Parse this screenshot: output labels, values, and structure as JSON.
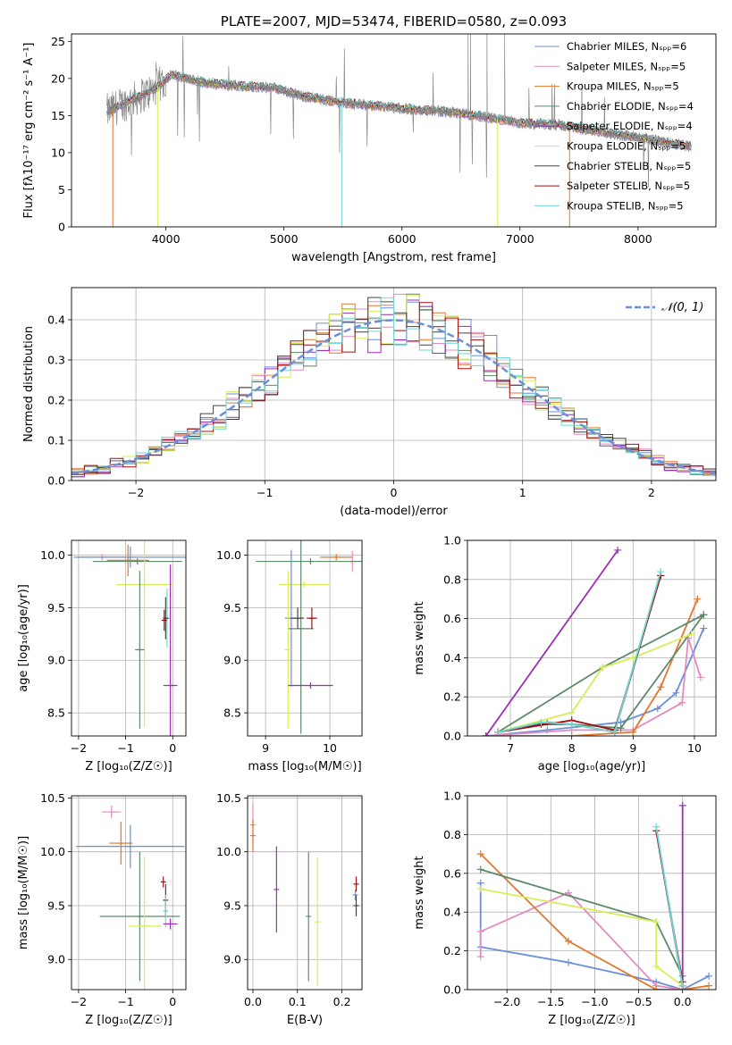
{
  "chart_data": [
    {
      "id": "spectrum",
      "type": "line",
      "title": "PLATE=2007, MJD=53474, FIBERID=0580, z=0.093",
      "xlabel": "wavelength [Angstrom, rest frame]",
      "ylabel": "Flux [fλ10⁻¹⁷ erg cm⁻² s⁻¹ A⁻¹]",
      "xlim": [
        3200,
        8660
      ],
      "ylim": [
        0,
        26
      ],
      "xticks": [
        4000,
        5000,
        6000,
        7000,
        8000
      ],
      "yticks": [
        0,
        5,
        10,
        15,
        20,
        25
      ],
      "legend_placement": "top-right",
      "legend": [
        {
          "name": "Chabrier MILES, Nₛₚₚ=6",
          "color": "#6b8fd8"
        },
        {
          "name": "Salpeter MILES, Nₛₚₚ=5",
          "color": "#e58ac0"
        },
        {
          "name": "Kroupa MILES, Nₛₚₚ=5",
          "color": "#e3762a"
        },
        {
          "name": "Chabrier ELODIE, Nₛₚₚ=4",
          "color": "#5e8a6a"
        },
        {
          "name": "Salpeter ELODIE, Nₛₚₚ=4",
          "color": "#9b2fb5"
        },
        {
          "name": "Kroupa ELODIE, Nₛₚₚ=5",
          "color": "#d6ee55"
        },
        {
          "name": "Chabrier STELIB, Nₛₚₚ=5",
          "color": "#444444"
        },
        {
          "name": "Salpeter STELIB, Nₛₚₚ=5",
          "color": "#a01010"
        },
        {
          "name": "Kroupa STELIB, Nₛₚₚ=5",
          "color": "#6fd6d6"
        }
      ],
      "continuum": {
        "x": [
          3500,
          3700,
          3900,
          4050,
          4300,
          4600,
          4900,
          5200,
          5500,
          5800,
          6100,
          6400,
          6700,
          7000,
          7300,
          7600,
          7900,
          8200,
          8450
        ],
        "y": [
          15.5,
          17.0,
          18.5,
          20.5,
          19.5,
          19.0,
          18.8,
          17.5,
          16.7,
          16.3,
          15.8,
          15.5,
          14.8,
          14.0,
          13.8,
          13.0,
          12.3,
          11.5,
          10.8
        ]
      },
      "data_color": "#888888"
    },
    {
      "id": "residuals",
      "type": "line",
      "xlabel": "(data-model)/error",
      "ylabel": "Normed distribution",
      "xlim": [
        -2.5,
        2.5
      ],
      "ylim": [
        0,
        0.48
      ],
      "xticks": [
        -2,
        -1,
        0,
        1,
        2
      ],
      "yticks": [
        0.0,
        0.1,
        0.2,
        0.3,
        0.4
      ],
      "grid": true,
      "legend_placement": "top-right",
      "legend": [
        {
          "name": "𝒩(0, 1)",
          "color": "#6b8fd8",
          "dash": true
        }
      ],
      "gaussian": {
        "mu": 0,
        "sigma": 1
      }
    },
    {
      "id": "age-vs-Z",
      "type": "scatter",
      "xlabel": "Z [log₁₀(Z/Z☉)]",
      "ylabel": "age  [log₁₀(age/yr)]",
      "xlim": [
        -2.15,
        0.28
      ],
      "ylim": [
        8.28,
        10.14
      ],
      "xticks": [
        -2,
        -1,
        0
      ],
      "yticks": [
        8.5,
        9.0,
        9.5,
        10.0
      ],
      "grid": true,
      "points": [
        {
          "x": -1.5,
          "y": 9.98,
          "ex": 0.5,
          "ey": 0.03,
          "color": "#e58ac0"
        },
        {
          "x": -0.9,
          "y": 9.98,
          "ex": 1.2,
          "ey": 0.1,
          "color": "#6b8fd8"
        },
        {
          "x": -0.95,
          "y": 9.95,
          "ex": 0.45,
          "ey": 0.15,
          "color": "#e3762a"
        },
        {
          "x": -0.75,
          "y": 9.94,
          "ex": 0.95,
          "ey": 0.03,
          "color": "#5e8a6a"
        },
        {
          "x": -0.6,
          "y": 9.72,
          "ex": 0.6,
          "ey": 1.35,
          "color": "#d6ee55"
        },
        {
          "x": -0.7,
          "y": 9.1,
          "ex": 0.1,
          "ey": 0.75,
          "color": "#5e8a6a"
        },
        {
          "x": -0.12,
          "y": 9.4,
          "ex": 0.08,
          "ey": 0.28,
          "color": "#6fd6d6"
        },
        {
          "x": -0.15,
          "y": 9.4,
          "ex": 0.05,
          "ey": 0.2,
          "color": "#444444"
        },
        {
          "x": -0.18,
          "y": 9.38,
          "ex": 0.04,
          "ey": 0.1,
          "color": "#a01010"
        },
        {
          "x": -0.05,
          "y": 8.76,
          "ex": 0.15,
          "ey": 1.15,
          "color": "#9b2fb5"
        }
      ]
    },
    {
      "id": "age-vs-mass",
      "type": "scatter",
      "xlabel": "mass [log₁₀(M/M☉)]",
      "xlim": [
        8.72,
        10.5
      ],
      "ylim": [
        8.28,
        10.14
      ],
      "xticks": [
        9,
        10
      ],
      "yticks": [
        8.5,
        9.0,
        9.5,
        10.0
      ],
      "grid": true,
      "points": [
        {
          "x": 10.1,
          "y": 9.98,
          "ex": 0.25,
          "ey": 0.03,
          "color": "#e3762a"
        },
        {
          "x": 10.35,
          "y": 9.94,
          "ex": 0.05,
          "ey": 0.1,
          "color": "#e58ac0"
        },
        {
          "x": 9.7,
          "y": 9.94,
          "ex": 0.85,
          "ey": 0.03,
          "color": "#5e8a6a"
        },
        {
          "x": 9.6,
          "y": 9.72,
          "ex": 0.4,
          "ey": 0.03,
          "color": "#d6ee55"
        },
        {
          "x": 9.55,
          "y": 9.3,
          "ex": 0.2,
          "ey": 1.0,
          "color": "#5e8a6a"
        },
        {
          "x": 9.4,
          "y": 9.4,
          "ex": 0.1,
          "ey": 0.65,
          "color": "#6b8fd8"
        },
        {
          "x": 9.5,
          "y": 9.4,
          "ex": 0.1,
          "ey": 0.1,
          "color": "#444444"
        },
        {
          "x": 9.72,
          "y": 9.4,
          "ex": 0.08,
          "ey": 0.1,
          "color": "#a01010"
        },
        {
          "x": 9.35,
          "y": 9.1,
          "ex": 0.05,
          "ey": 0.75,
          "color": "#d6ee55"
        },
        {
          "x": 9.7,
          "y": 8.76,
          "ex": 0.35,
          "ey": 0.03,
          "color": "#9b2fb5"
        }
      ]
    },
    {
      "id": "massweight-vs-age",
      "type": "line",
      "xlabel": "age  [log₁₀(age/yr)]",
      "ylabel": "mass weight",
      "xlim": [
        6.3,
        10.35
      ],
      "ylim": [
        0,
        1.0
      ],
      "xticks": [
        7,
        8,
        9,
        10
      ],
      "yticks": [
        0.0,
        0.2,
        0.4,
        0.6,
        0.8,
        1.0
      ],
      "grid": true,
      "series": [
        {
          "color": "#6b8fd8",
          "x": [
            6.6,
            7.6,
            8.8,
            9.4,
            9.7,
            10.15
          ],
          "y": [
            0.0,
            0.03,
            0.07,
            0.14,
            0.22,
            0.55
          ]
        },
        {
          "color": "#e58ac0",
          "x": [
            6.6,
            8.0,
            9.0,
            9.8,
            9.9,
            10.1
          ],
          "y": [
            0.0,
            0.03,
            0.03,
            0.17,
            0.5,
            0.3
          ]
        },
        {
          "color": "#e3762a",
          "x": [
            6.6,
            8.0,
            9.0,
            9.45,
            10.05
          ],
          "y": [
            0.0,
            0.0,
            0.02,
            0.25,
            0.7
          ]
        },
        {
          "color": "#5e8a6a",
          "x": [
            6.8,
            7.6,
            8.8,
            10.15
          ],
          "y": [
            0.02,
            0.07,
            0.04,
            0.62
          ]
        },
        {
          "color": "#5e8a6a",
          "x": [
            6.8,
            8.5,
            10.15
          ],
          "y": [
            0.02,
            0.35,
            0.62
          ]
        },
        {
          "color": "#9b2fb5",
          "x": [
            6.6,
            8.75
          ],
          "y": [
            0.0,
            0.95
          ]
        },
        {
          "color": "#d6ee55",
          "x": [
            6.8,
            8.0,
            8.5,
            9.0,
            9.95
          ],
          "y": [
            0.02,
            0.12,
            0.35,
            0.4,
            0.52
          ]
        },
        {
          "color": "#444444",
          "x": [
            6.8,
            7.5,
            8.0,
            8.7,
            9.45
          ],
          "y": [
            0.02,
            0.06,
            0.06,
            0.02,
            0.82
          ]
        },
        {
          "color": "#a01010",
          "x": [
            6.8,
            8.0,
            8.7,
            9.45
          ],
          "y": [
            0.02,
            0.08,
            0.03,
            0.82
          ]
        },
        {
          "color": "#6fd6d6",
          "x": [
            6.8,
            7.5,
            8.0,
            8.7,
            9.45
          ],
          "y": [
            0.02,
            0.07,
            0.06,
            0.02,
            0.84
          ]
        }
      ]
    },
    {
      "id": "mass-vs-Z",
      "type": "scatter",
      "xlabel": "Z [log₁₀(Z/Z☉)]",
      "ylabel": "mass [log₁₀(M/M☉)]",
      "xlim": [
        -2.15,
        0.28
      ],
      "ylim": [
        8.72,
        10.52
      ],
      "xticks": [
        -2,
        -1,
        0
      ],
      "yticks": [
        9.0,
        9.5,
        10.0,
        10.5
      ],
      "grid": true,
      "points": [
        {
          "x": -1.3,
          "y": 10.37,
          "ex": 0.2,
          "ey": 0.06,
          "color": "#e58ac0"
        },
        {
          "x": -1.1,
          "y": 10.08,
          "ex": 0.25,
          "ey": 0.2,
          "color": "#e3762a"
        },
        {
          "x": -0.9,
          "y": 10.05,
          "ex": 1.15,
          "ey": 0.2,
          "color": "#6b8fd8"
        },
        {
          "x": -0.7,
          "y": 9.4,
          "ex": 0.85,
          "ey": 0.6,
          "color": "#5e8a6a"
        },
        {
          "x": -0.6,
          "y": 9.31,
          "ex": 0.35,
          "ey": 0.65,
          "color": "#d6ee55"
        },
        {
          "x": -0.2,
          "y": 9.72,
          "ex": 0.05,
          "ey": 0.05,
          "color": "#a01010"
        },
        {
          "x": -0.15,
          "y": 9.55,
          "ex": 0.05,
          "ey": 0.15,
          "color": "#444444"
        },
        {
          "x": -0.15,
          "y": 9.45,
          "ex": 0.05,
          "ey": 0.15,
          "color": "#6fd6d6"
        },
        {
          "x": -0.05,
          "y": 9.33,
          "ex": 0.15,
          "ey": 0.05,
          "color": "#9b2fb5"
        }
      ]
    },
    {
      "id": "mass-vs-EBV",
      "type": "scatter",
      "xlabel": "E(B-V)",
      "xlim": [
        -0.012,
        0.245
      ],
      "ylim": [
        8.72,
        10.52
      ],
      "xticks": [
        0.0,
        0.1,
        0.2
      ],
      "yticks": [
        9.0,
        9.5,
        10.0,
        10.5
      ],
      "grid": true,
      "points": [
        {
          "x": 0.0,
          "y": 10.25,
          "ex": 0,
          "ey": 0.2,
          "color": "#e58ac0"
        },
        {
          "x": 0.0,
          "y": 10.15,
          "ex": 0,
          "ey": 0.15,
          "color": "#e3762a"
        },
        {
          "x": 0.053,
          "y": 9.65,
          "ex": 0,
          "ey": 0.4,
          "color": "#9b2fb5"
        },
        {
          "x": 0.125,
          "y": 9.4,
          "ex": 0,
          "ey": 0.6,
          "color": "#5e8a6a"
        },
        {
          "x": 0.145,
          "y": 9.35,
          "ex": 0,
          "ey": 0.6,
          "color": "#d6ee55"
        },
        {
          "x": 0.232,
          "y": 9.7,
          "ex": 0,
          "ey": 0.07,
          "color": "#a01010"
        },
        {
          "x": 0.232,
          "y": 9.5,
          "ex": 0,
          "ey": 0.1,
          "color": "#444444"
        },
        {
          "x": 0.23,
          "y": 9.6,
          "ex": 0,
          "ey": 0.05,
          "color": "#6b8fd8"
        }
      ]
    },
    {
      "id": "massweight-vs-Z",
      "type": "line",
      "xlabel": "Z [log₁₀(Z/Z☉)]",
      "ylabel": "mass weight",
      "xlim": [
        -2.45,
        0.38
      ],
      "ylim": [
        0,
        1.0
      ],
      "xticks": [
        -2.0,
        -1.5,
        -1.0,
        -0.5,
        0.0
      ],
      "yticks": [
        0.0,
        0.2,
        0.4,
        0.6,
        0.8,
        1.0
      ],
      "grid": true,
      "series": [
        {
          "color": "#6b8fd8",
          "x": [
            -2.3,
            -2.3,
            -1.3,
            -0.3,
            0.0,
            0.3
          ],
          "y": [
            0.55,
            0.22,
            0.14,
            0.04,
            0.0,
            0.07
          ]
        },
        {
          "color": "#e58ac0",
          "x": [
            -2.3,
            -2.3,
            -1.3,
            -0.3,
            0.0
          ],
          "y": [
            0.17,
            0.3,
            0.5,
            0.02,
            0.0
          ]
        },
        {
          "color": "#e3762a",
          "x": [
            -2.3,
            -1.3,
            -0.3,
            0.0,
            0.3
          ],
          "y": [
            0.7,
            0.25,
            0.0,
            0.0,
            0.02
          ]
        },
        {
          "color": "#5e8a6a",
          "x": [
            -2.3,
            -0.3,
            0.0,
            0.0
          ],
          "y": [
            0.62,
            0.35,
            0.07,
            0.0
          ]
        },
        {
          "color": "#d6ee55",
          "x": [
            -2.3,
            -0.3,
            -0.3,
            0.0,
            0.0
          ],
          "y": [
            0.52,
            0.35,
            0.12,
            0.02,
            0.0
          ]
        },
        {
          "color": "#9b2fb5",
          "x": [
            0.0,
            0.0
          ],
          "y": [
            0.95,
            0.0
          ]
        },
        {
          "color": "#444444",
          "x": [
            -0.3,
            0.0
          ],
          "y": [
            0.82,
            0.02
          ]
        },
        {
          "color": "#a01010",
          "x": [
            -0.3,
            0.0
          ],
          "y": [
            0.82,
            0.04
          ]
        },
        {
          "color": "#6fd6d6",
          "x": [
            -0.3,
            0.0
          ],
          "y": [
            0.84,
            0.02
          ]
        }
      ]
    }
  ]
}
